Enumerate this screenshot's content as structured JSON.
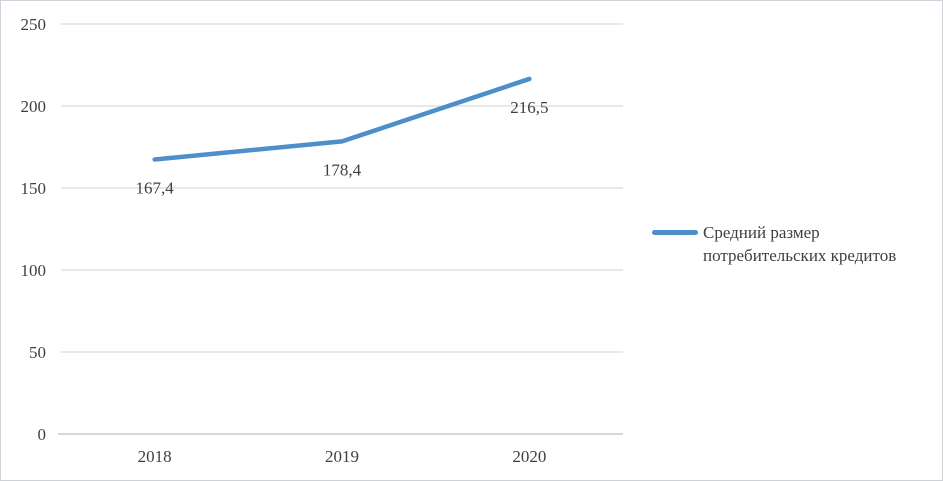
{
  "chart_data": {
    "type": "line",
    "categories": [
      "2018",
      "2019",
      "2020"
    ],
    "series": [
      {
        "name": "Средний размер потребительских кредитов",
        "values": [
          167.4,
          178.4,
          216.5
        ],
        "data_labels": [
          "167,4",
          "178,4",
          "216,5"
        ]
      }
    ],
    "title": "",
    "xlabel": "",
    "ylabel": "",
    "ylim": [
      0,
      250
    ],
    "ytick_interval": 50,
    "yticks": [
      "0",
      "50",
      "100",
      "150",
      "200",
      "250"
    ],
    "grid": true,
    "legend_position": "right",
    "colors": {
      "line": "#4e8ecb",
      "gridline": "#d9d9d9",
      "axis_line": "#bfbfbf",
      "text": "#3f3f3f",
      "frame_border": "#cdd3d9",
      "background": "#ffffff"
    }
  }
}
